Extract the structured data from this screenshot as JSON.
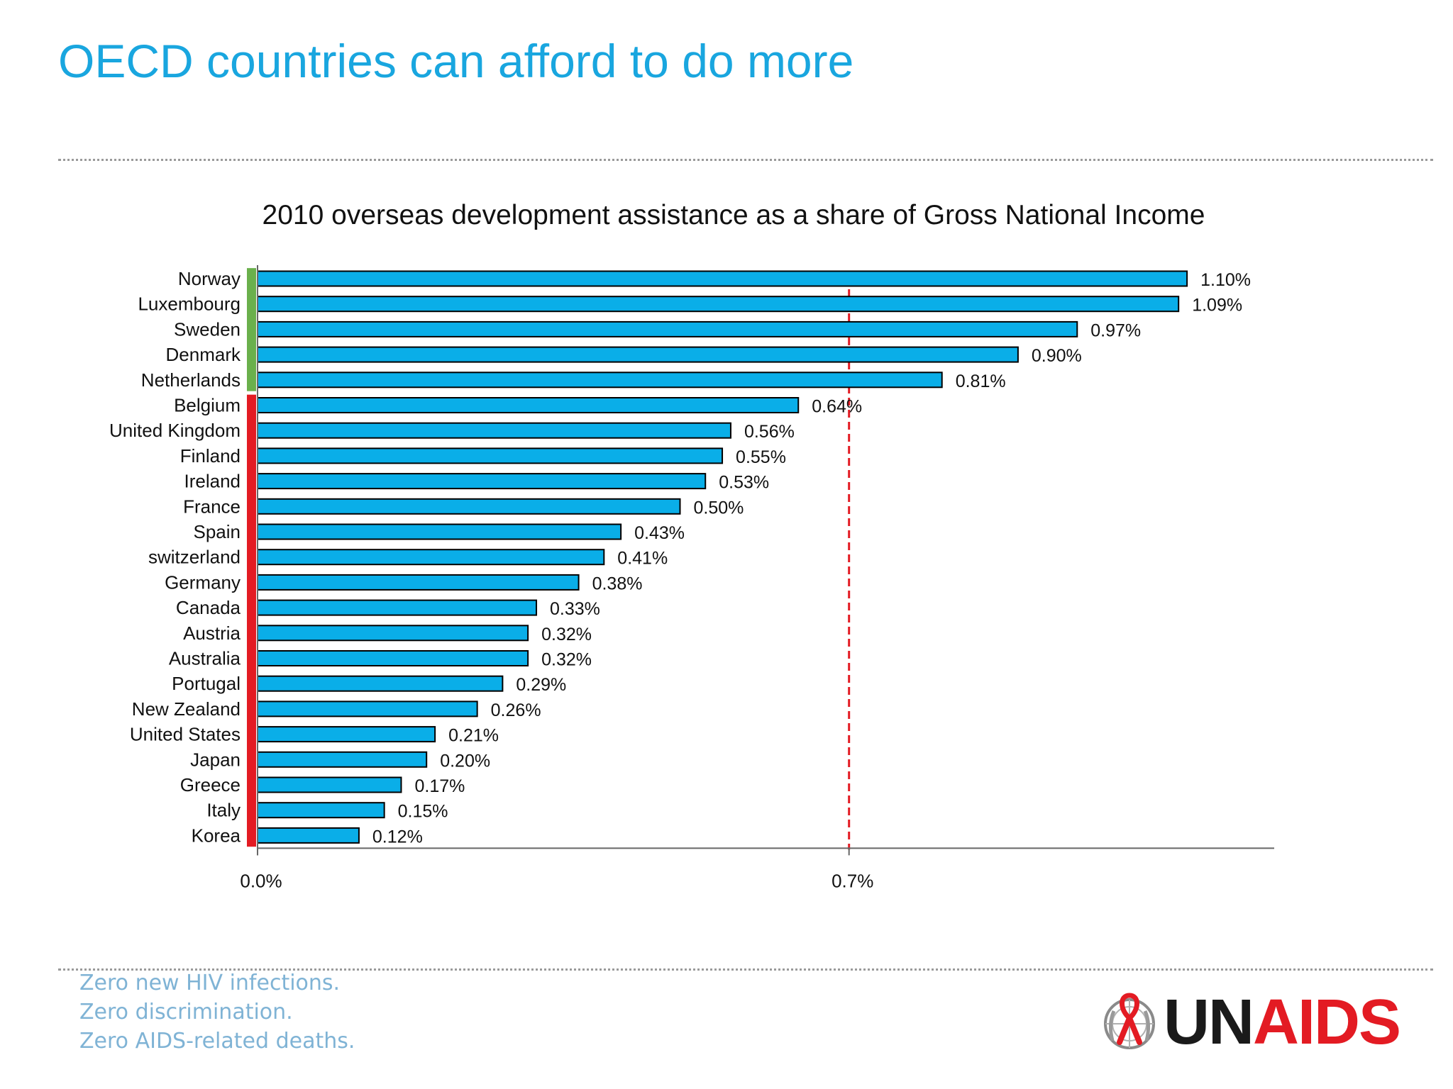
{
  "slide": {
    "title": "OECD countries can afford to do more"
  },
  "chart_data": {
    "type": "bar",
    "orientation": "horizontal",
    "title": "2010 overseas development assistance as a share of Gross National Income",
    "xlabel": "",
    "ylabel": "",
    "xlim": [
      0,
      1.2
    ],
    "x_ticks": [
      {
        "value": 0.0,
        "label": "0.0%"
      },
      {
        "value": 0.7,
        "label": "0.7%"
      }
    ],
    "reference_line": {
      "value": 0.7,
      "color": "#e31b23",
      "style": "dashed"
    },
    "bar_color": "#0aaee8",
    "bar_edge_color": "#000000",
    "categories": [
      "Norway",
      "Luxembourg",
      "Sweden",
      "Denmark",
      "Netherlands",
      "Belgium",
      "United Kingdom",
      "Finland",
      "Ireland",
      "France",
      "Spain",
      "switzerland",
      "Germany",
      "Canada",
      "Austria",
      "Australia",
      "Portugal",
      "New Zealand",
      "United States",
      "Japan",
      "Greece",
      "Italy",
      "Korea"
    ],
    "values": [
      1.1,
      1.09,
      0.97,
      0.9,
      0.81,
      0.64,
      0.56,
      0.55,
      0.53,
      0.5,
      0.43,
      0.41,
      0.38,
      0.33,
      0.32,
      0.32,
      0.29,
      0.26,
      0.21,
      0.2,
      0.17,
      0.15,
      0.12
    ],
    "value_labels": [
      "1.10%",
      "1.09%",
      "0.97%",
      "0.90%",
      "0.81%",
      "0.64%",
      "0.56%",
      "0.55%",
      "0.53%",
      "0.50%",
      "0.43%",
      "0.41%",
      "0.38%",
      "0.33%",
      "0.32%",
      "0.32%",
      "0.29%",
      "0.26%",
      "0.21%",
      "0.20%",
      "0.17%",
      "0.15%",
      "0.12%"
    ],
    "group_markers": [
      {
        "from_index": 0,
        "to_index": 4,
        "color": "#6ab04c"
      },
      {
        "from_index": 5,
        "to_index": 22,
        "color": "#e31b23"
      }
    ],
    "grid": false,
    "legend": "none"
  },
  "footer": {
    "tagline": [
      "Zero new HIV infections.",
      "Zero discrimination.",
      "Zero AIDS-related deaths."
    ],
    "logo": {
      "text_dark": "UN",
      "text_red": "AIDS",
      "emblem_icon": "un-emblem-ribbon-icon",
      "dark_color": "#1a1a1a",
      "red_color": "#e31b23"
    }
  }
}
